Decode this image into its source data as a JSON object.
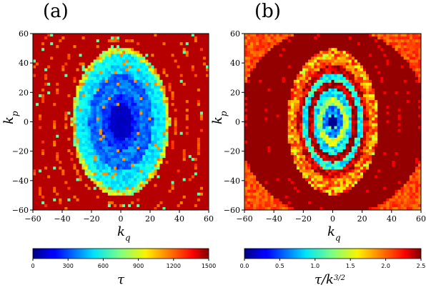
{
  "chart_data": [
    {
      "type": "heatmap",
      "panel": "(a)",
      "xlabel": "k_q",
      "ylabel": "k_p",
      "xlim": [
        -60,
        60
      ],
      "ylim": [
        -60,
        60
      ],
      "xticks": [
        -60,
        -40,
        -20,
        0,
        20,
        40,
        60
      ],
      "yticks": [
        -60,
        -40,
        -20,
        0,
        20,
        40,
        60
      ],
      "colorbar": {
        "label": "τ",
        "range": [
          0,
          1500
        ],
        "ticks": [
          0,
          300,
          600,
          900,
          1200,
          1500
        ],
        "colormap": "jet"
      },
      "pattern": {
        "rx": 31,
        "ry": 47,
        "core_value": 80,
        "ring_levels": [
          120,
          180,
          260,
          380,
          330,
          520,
          560
        ],
        "rim_value": 900,
        "background_value": 1420
      }
    },
    {
      "type": "heatmap",
      "panel": "(b)",
      "xlabel": "k_q",
      "ylabel": "k_p",
      "xlim": [
        -60,
        60
      ],
      "ylim": [
        -60,
        60
      ],
      "xticks": [
        -60,
        -40,
        -20,
        0,
        20,
        40,
        60
      ],
      "yticks": [
        -60,
        -40,
        -20,
        0,
        20,
        40,
        60
      ],
      "colorbar": {
        "label": "τ/k^{3/2}",
        "range": [
          0.0,
          2.5
        ],
        "ticks": [
          "0.0",
          "0.5",
          "1.0",
          "1.5",
          "2.0",
          "2.5"
        ],
        "colormap": "jet"
      },
      "pattern": {
        "rx": 28,
        "ry": 45,
        "core_value": 0.05,
        "ring_levels": [
          1.1,
          0.7,
          1.4,
          0.9,
          2.4,
          1.0,
          2.3,
          1.9
        ],
        "rim_value": 1.8,
        "background_value": 2.45,
        "corner_value": 2.0
      }
    }
  ],
  "colors": {
    "background": "#ffffff",
    "axes": "#000000"
  }
}
